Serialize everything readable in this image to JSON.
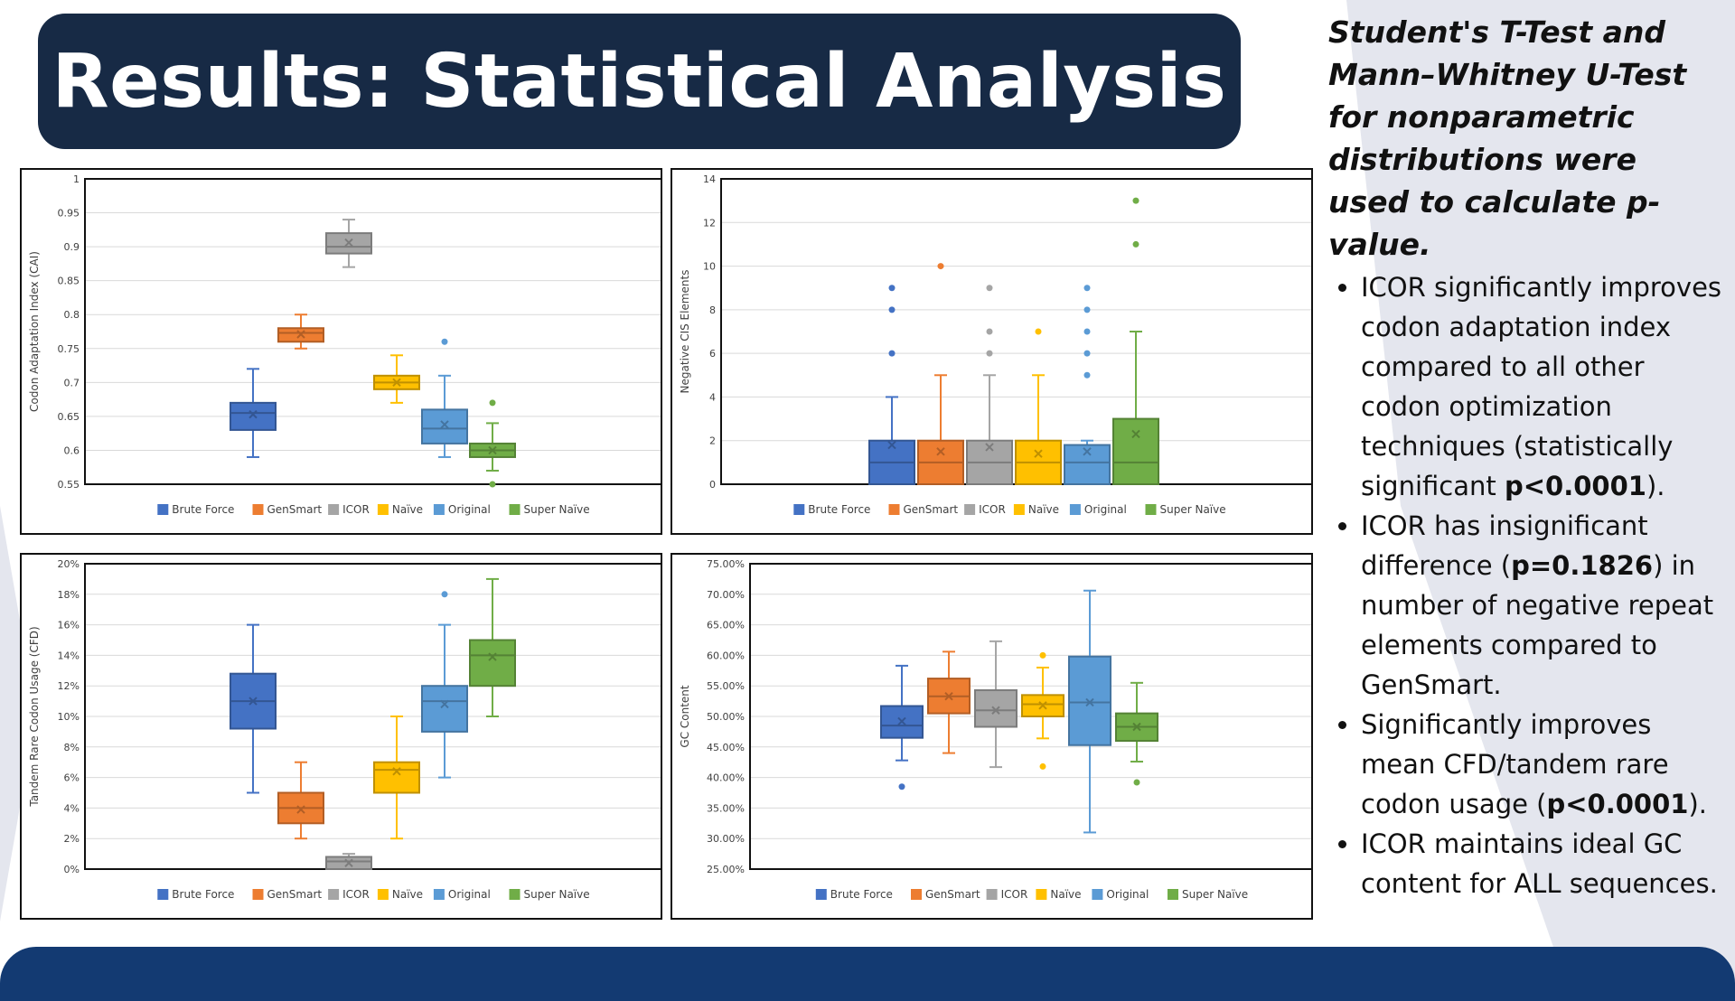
{
  "title": "Results: Statistical Analysis",
  "sidebar": {
    "lead": "Student's T-Test and Mann–Whitney U-Test for nonparametric distributions were used to calculate p-value.",
    "bullets": [
      {
        "pre": "ICOR significantly improves codon adaptation index compared to all other codon optimization techniques (statistically significant ",
        "bold": "p<0.0001",
        "post": ")."
      },
      {
        "pre": "ICOR has insignificant difference (",
        "bold": "p=0.1826",
        "post": ") in number of negative repeat elements compared to GenSmart."
      },
      {
        "pre": "Significantly improves mean CFD/tandem rare codon usage (",
        "bold": "p<0.0001",
        "post": ")."
      },
      {
        "pre": "ICOR maintains ideal GC content for ALL sequences.",
        "bold": "",
        "post": ""
      }
    ]
  },
  "colors": {
    "Brute Force": "#4472c4",
    "GenSmart": "#ed7d31",
    "ICOR": "#a5a5a5",
    "Naïve": "#ffc000",
    "Original": "#5b9bd5",
    "Super Naïve": "#70ad47"
  },
  "chart_data": [
    {
      "type": "box",
      "ylabel": "Codon Adaptation Index (CAI)",
      "ylim": [
        0.55,
        1
      ],
      "yticks": [
        "0.55",
        "0.6",
        "0.65",
        "0.7",
        "0.75",
        "0.8",
        "0.85",
        "0.9",
        "0.95",
        "1"
      ],
      "tick_values": [
        0.55,
        0.6,
        0.65,
        0.7,
        0.75,
        0.8,
        0.85,
        0.9,
        0.95,
        1
      ],
      "legend": [
        "Brute Force",
        "GenSmart",
        "ICOR",
        "Naïve",
        "Original",
        "Super Naïve"
      ],
      "series": [
        {
          "name": "Brute Force",
          "min": 0.59,
          "q1": 0.63,
          "median": 0.655,
          "q3": 0.67,
          "max": 0.72,
          "mean": 0.653,
          "outliers": []
        },
        {
          "name": "GenSmart",
          "min": 0.75,
          "q1": 0.76,
          "median": 0.773,
          "q3": 0.78,
          "max": 0.8,
          "mean": 0.771,
          "outliers": []
        },
        {
          "name": "ICOR",
          "min": 0.87,
          "q1": 0.89,
          "median": 0.9,
          "q3": 0.92,
          "max": 0.94,
          "mean": 0.906,
          "outliers": []
        },
        {
          "name": "Naïve",
          "min": 0.67,
          "q1": 0.69,
          "median": 0.7,
          "q3": 0.71,
          "max": 0.74,
          "mean": 0.7,
          "outliers": []
        },
        {
          "name": "Original",
          "min": 0.59,
          "q1": 0.61,
          "median": 0.632,
          "q3": 0.66,
          "max": 0.71,
          "mean": 0.638,
          "outliers": [
            0.76
          ]
        },
        {
          "name": "Super Naïve",
          "min": 0.57,
          "q1": 0.59,
          "median": 0.6,
          "q3": 0.61,
          "max": 0.64,
          "mean": 0.6,
          "outliers": [
            0.67,
            0.55
          ]
        }
      ]
    },
    {
      "type": "box",
      "ylabel": "Negative CIS Elements",
      "ylim": [
        0,
        14
      ],
      "yticks": [
        "0",
        "2",
        "4",
        "6",
        "8",
        "10",
        "12",
        "14"
      ],
      "tick_values": [
        0,
        2,
        4,
        6,
        8,
        10,
        12,
        14
      ],
      "legend": [
        "Brute Force",
        "GenSmart",
        "ICOR",
        "Naïve",
        "Original",
        "Super Naïve"
      ],
      "series": [
        {
          "name": "Brute Force",
          "min": 0,
          "q1": 0,
          "median": 1,
          "q3": 2,
          "max": 4,
          "mean": 1.8,
          "outliers": [
            6,
            8,
            9
          ]
        },
        {
          "name": "GenSmart",
          "min": 0,
          "q1": 0,
          "median": 1,
          "q3": 2,
          "max": 5,
          "mean": 1.5,
          "outliers": [
            10
          ]
        },
        {
          "name": "ICOR",
          "min": 0,
          "q1": 0,
          "median": 1,
          "q3": 2,
          "max": 5,
          "mean": 1.7,
          "outliers": [
            6,
            7,
            9
          ]
        },
        {
          "name": "Naïve",
          "min": 0,
          "q1": 0,
          "median": 1,
          "q3": 2,
          "max": 5,
          "mean": 1.4,
          "outliers": [
            7
          ]
        },
        {
          "name": "Original",
          "min": 0,
          "q1": 0,
          "median": 1,
          "q3": 1.8,
          "max": 2,
          "mean": 1.5,
          "outliers": [
            5,
            6,
            7,
            8,
            9
          ]
        },
        {
          "name": "Super Naïve",
          "min": 0,
          "q1": 0,
          "median": 1,
          "q3": 3,
          "max": 7,
          "mean": 2.3,
          "outliers": [
            11,
            13
          ]
        }
      ]
    },
    {
      "type": "box",
      "ylabel": "Tandem Rare Codon Usage (CFD)",
      "ylim": [
        0,
        20
      ],
      "yticks": [
        "0%",
        "2%",
        "4%",
        "6%",
        "8%",
        "10%",
        "12%",
        "14%",
        "16%",
        "18%",
        "20%"
      ],
      "tick_values": [
        0,
        2,
        4,
        6,
        8,
        10,
        12,
        14,
        16,
        18,
        20
      ],
      "legend": [
        "Brute Force",
        "GenSmart",
        "ICOR",
        "Naïve",
        "Original",
        "Super Naïve"
      ],
      "series": [
        {
          "name": "Brute Force",
          "min": 5,
          "q1": 9.2,
          "median": 11,
          "q3": 12.8,
          "max": 16,
          "mean": 11,
          "outliers": []
        },
        {
          "name": "GenSmart",
          "min": 2,
          "q1": 3,
          "median": 4,
          "q3": 5,
          "max": 7,
          "mean": 3.9,
          "outliers": []
        },
        {
          "name": "ICOR",
          "min": 0,
          "q1": 0,
          "median": 0.5,
          "q3": 0.8,
          "max": 1,
          "mean": 0.4,
          "outliers": []
        },
        {
          "name": "Naïve",
          "min": 2,
          "q1": 5,
          "median": 6.5,
          "q3": 7,
          "max": 10,
          "mean": 6.4,
          "outliers": []
        },
        {
          "name": "Original",
          "min": 6,
          "q1": 9,
          "median": 11,
          "q3": 12,
          "max": 16,
          "mean": 10.8,
          "outliers": [
            18
          ]
        },
        {
          "name": "Super Naïve",
          "min": 10,
          "q1": 12,
          "median": 14,
          "q3": 15,
          "max": 19,
          "mean": 13.9,
          "outliers": []
        }
      ]
    },
    {
      "type": "box",
      "ylabel": "GC Content",
      "ylim": [
        25,
        75
      ],
      "yticks": [
        "25.00%",
        "30.00%",
        "35.00%",
        "40.00%",
        "45.00%",
        "50.00%",
        "55.00%",
        "60.00%",
        "65.00%",
        "70.00%",
        "75.00%"
      ],
      "tick_values": [
        25,
        30,
        35,
        40,
        45,
        50,
        55,
        60,
        65,
        70,
        75
      ],
      "legend": [
        "Brute Force",
        "GenSmart",
        "ICOR",
        "Naïve",
        "Original",
        "Super Naïve"
      ],
      "series": [
        {
          "name": "Brute Force",
          "min": 42.8,
          "q1": 46.5,
          "median": 48.5,
          "q3": 51.7,
          "max": 58.3,
          "mean": 49.2,
          "outliers": [
            38.5
          ]
        },
        {
          "name": "GenSmart",
          "min": 44,
          "q1": 50.5,
          "median": 53.3,
          "q3": 56.2,
          "max": 60.6,
          "mean": 53.3,
          "outliers": []
        },
        {
          "name": "ICOR",
          "min": 41.7,
          "q1": 48.3,
          "median": 51,
          "q3": 54.3,
          "max": 62.3,
          "mean": 51,
          "outliers": []
        },
        {
          "name": "Naïve",
          "min": 46.4,
          "q1": 50,
          "median": 52,
          "q3": 53.5,
          "max": 58,
          "mean": 51.8,
          "outliers": [
            60,
            41.8
          ]
        },
        {
          "name": "Original",
          "min": 31,
          "q1": 45.3,
          "median": 52.3,
          "q3": 59.8,
          "max": 70.6,
          "mean": 52.3,
          "outliers": []
        },
        {
          "name": "Super Naïve",
          "min": 42.6,
          "q1": 46,
          "median": 48.3,
          "q3": 50.5,
          "max": 55.5,
          "mean": 48.3,
          "outliers": [
            39.2
          ]
        }
      ]
    }
  ]
}
